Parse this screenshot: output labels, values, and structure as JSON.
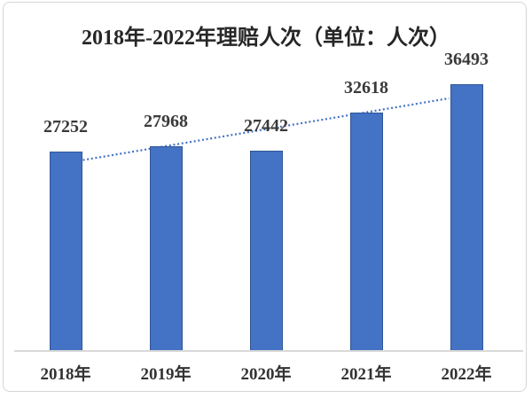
{
  "window": {
    "background": "#ffffff",
    "frame_border_color": "#d6d6d6"
  },
  "chart_data": {
    "type": "bar",
    "title": "2018年-2022年理赔人次（单位：人次）",
    "categories": [
      "2018年",
      "2019年",
      "2020年",
      "2021年",
      "2022年"
    ],
    "values": [
      27252,
      27968,
      27442,
      32618,
      36493
    ],
    "data_labels": [
      "27252",
      "27968",
      "27442",
      "32618",
      "36493"
    ],
    "xlabel": "",
    "ylabel": "",
    "ylim": [
      0,
      37000
    ],
    "grid": false,
    "legend": "none",
    "y_axis_visible": false,
    "trendline": {
      "type": "linear",
      "style": "dotted",
      "color": "#4472C4"
    },
    "colors": {
      "bar_fill": "#4472C4",
      "bar_border": "#2F5597",
      "axis_line": "#D9D9D9",
      "title_text": "#262626",
      "label_text": "#3A3A3A"
    }
  }
}
